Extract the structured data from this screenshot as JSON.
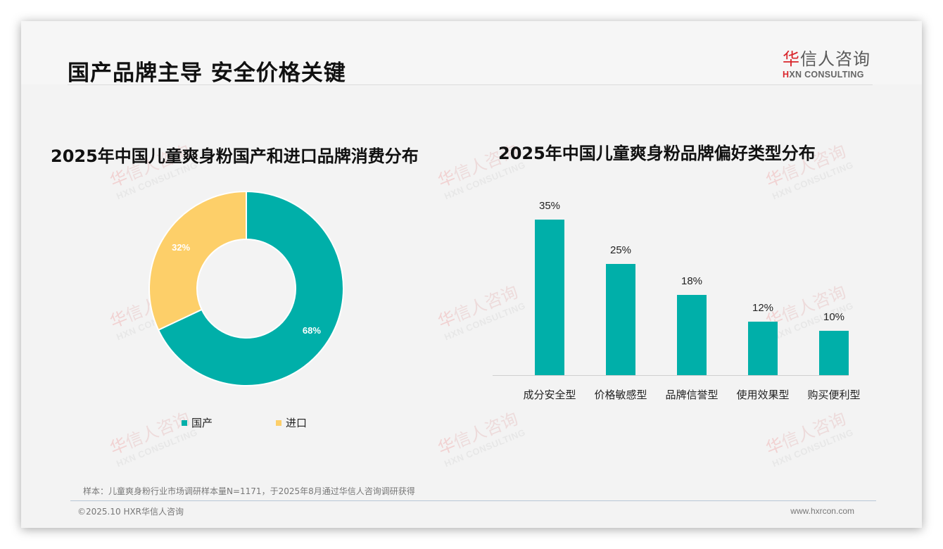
{
  "header": {
    "title": "国产品牌主导 安全价格关键",
    "logo": {
      "cn_first": "华",
      "cn_rest": "信人咨询",
      "en_first": "H",
      "en_rest": "XN CONSULTING"
    }
  },
  "watermark": {
    "cn_first": "华",
    "cn_rest": "信人咨询",
    "en": "HXN CONSULTING"
  },
  "colors": {
    "teal": "#00afa9",
    "yellow": "#fdcf69",
    "title": "#111111",
    "muted": "#777777"
  },
  "chart_data": [
    {
      "type": "pie",
      "variant": "donut",
      "title": "2025年中国儿童爽身粉国产和进口品牌消费分布",
      "categories": [
        "国产",
        "进口"
      ],
      "values": [
        68,
        32
      ],
      "labels": [
        "68%",
        "32%"
      ],
      "colors": [
        "#00afa9",
        "#fdcf69"
      ],
      "legend_position": "bottom"
    },
    {
      "type": "bar",
      "title": "2025年中国儿童爽身粉品牌偏好类型分布",
      "categories": [
        "成分安全型",
        "价格敏感型",
        "品牌信誉型",
        "使用效果型",
        "购买便利型"
      ],
      "values": [
        35,
        25,
        18,
        12,
        10
      ],
      "labels": [
        "35%",
        "25%",
        "18%",
        "12%",
        "10%"
      ],
      "xlabel": "",
      "ylabel": "",
      "ylim": [
        0,
        40
      ],
      "grid": false,
      "color": "#00afa9"
    }
  ],
  "legend": {
    "items": [
      {
        "label": "国产",
        "color": "#00afa9"
      },
      {
        "label": "进口",
        "color": "#fdcf69"
      }
    ]
  },
  "footer": {
    "sample_note": "样本：儿童爽身粉行业市场调研样本量N=1171，于2025年8月通过华信人咨询调研获得",
    "copyright": "©2025.10 HXR华信人咨询",
    "website": "www.hxrcon.com"
  }
}
